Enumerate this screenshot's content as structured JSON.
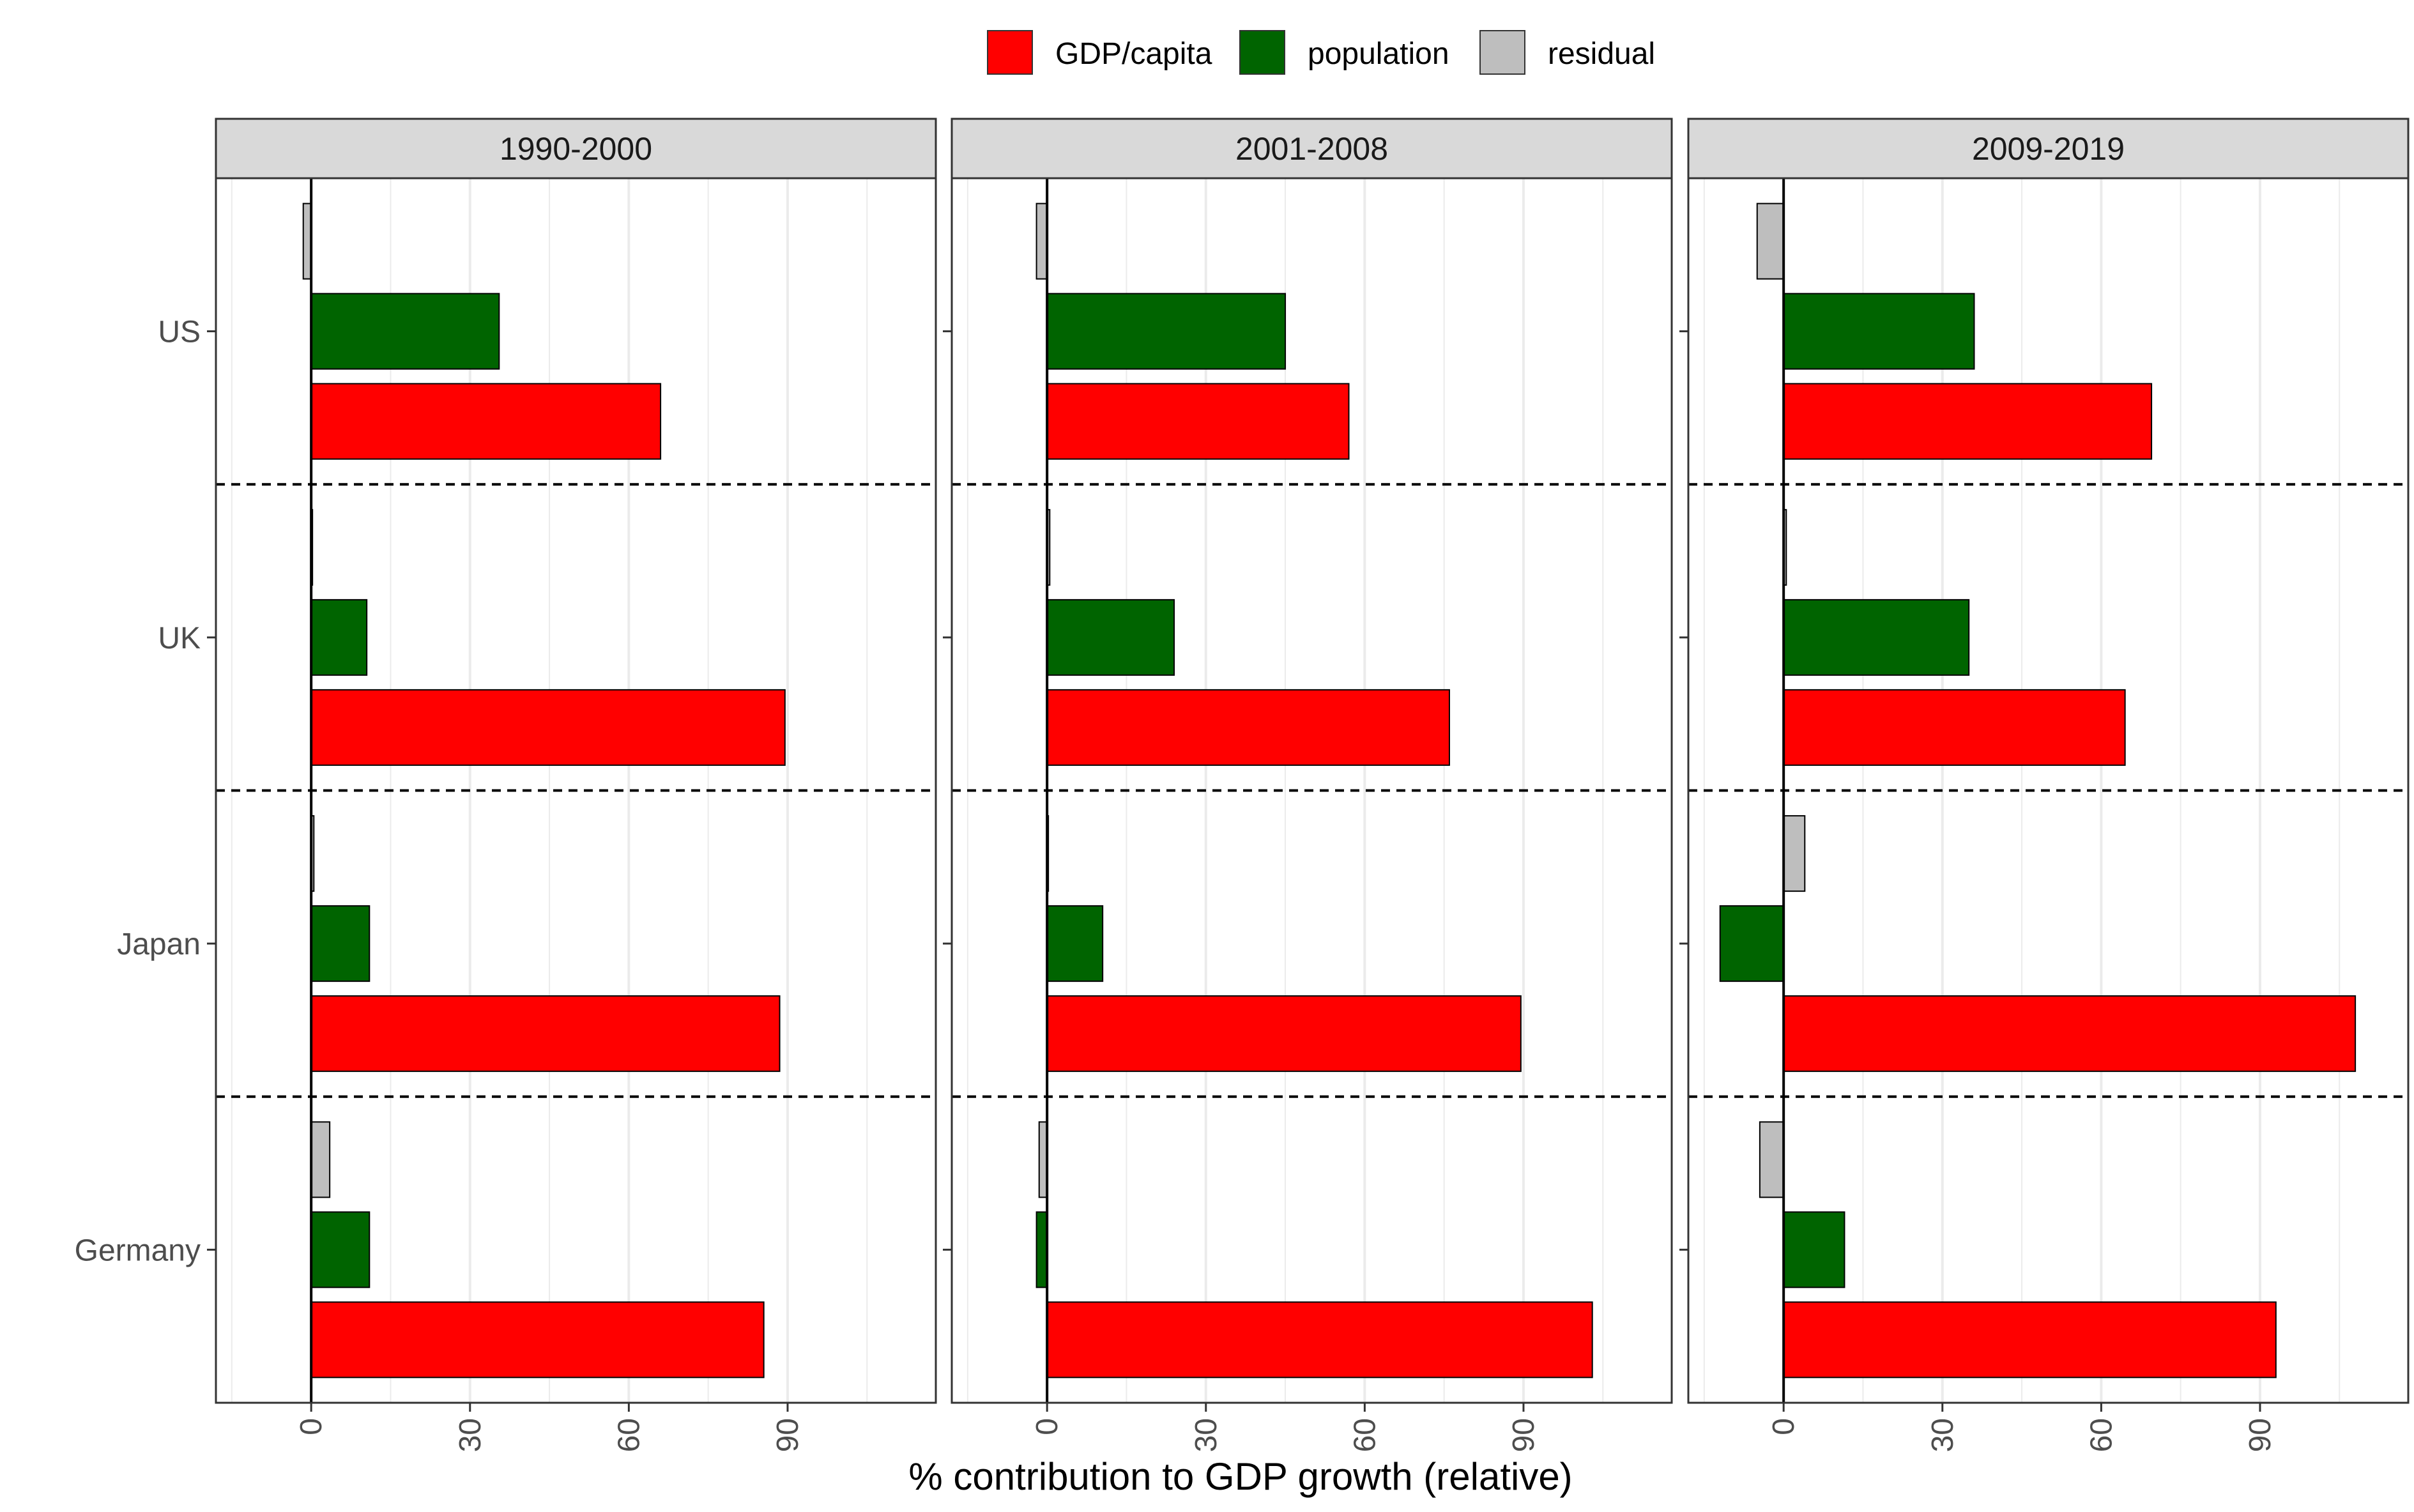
{
  "chart_data": {
    "type": "bar",
    "orientation": "horizontal",
    "xlabel": "% contribution to GDP growth (relative)",
    "ylabel": "",
    "title": "",
    "xlim": [
      -18,
      118
    ],
    "x_ticks": [
      0,
      30,
      60,
      90
    ],
    "grid": true,
    "legend_position": "top",
    "categories": [
      "US",
      "UK",
      "Japan",
      "Germany"
    ],
    "series": [
      {
        "name": "GDP/capita",
        "color": "#FF0000"
      },
      {
        "name": "population",
        "color": "#006400"
      },
      {
        "name": "residual",
        "color": "#BEBEBE"
      }
    ],
    "panels": [
      {
        "title": "1990-2000",
        "values": {
          "US": {
            "GDP/capita": 66,
            "population": 35.5,
            "residual": -1.5
          },
          "UK": {
            "GDP/capita": 89.5,
            "population": 10.5,
            "residual": 0
          },
          "Japan": {
            "GDP/capita": 88.5,
            "population": 11,
            "residual": 0.5
          },
          "Germany": {
            "GDP/capita": 85.5,
            "population": 11,
            "residual": 3.5
          }
        }
      },
      {
        "title": "2001-2008",
        "values": {
          "US": {
            "GDP/capita": 57,
            "population": 45,
            "residual": -2
          },
          "UK": {
            "GDP/capita": 76,
            "population": 24,
            "residual": 0.5
          },
          "Japan": {
            "GDP/capita": 89.5,
            "population": 10.5,
            "residual": 0
          },
          "Germany": {
            "GDP/capita": 103,
            "population": -2,
            "residual": -1.5
          }
        }
      },
      {
        "title": "2009-2019",
        "values": {
          "US": {
            "GDP/capita": 69.5,
            "population": 36,
            "residual": -5
          },
          "UK": {
            "GDP/capita": 64.5,
            "population": 35,
            "residual": 0.5
          },
          "Japan": {
            "GDP/capita": 108,
            "population": -12,
            "residual": 4
          },
          "Germany": {
            "GDP/capita": 93,
            "population": 11.5,
            "residual": -4.5
          }
        }
      }
    ]
  }
}
